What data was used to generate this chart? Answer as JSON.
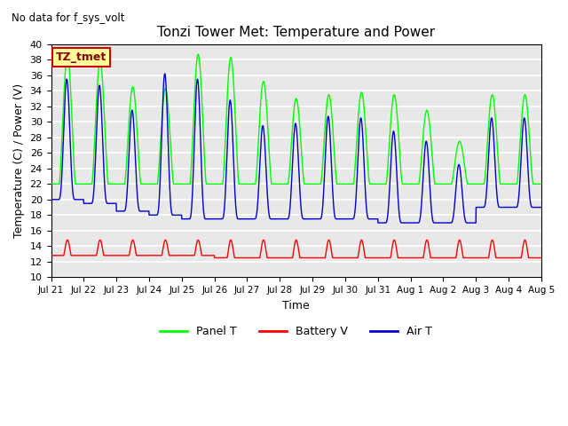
{
  "title": "Tonzi Tower Met: Temperature and Power",
  "top_left_note": "No data for f_sys_volt",
  "ylabel": "Temperature (C) / Power (V)",
  "xlabel": "Time",
  "ylim": [
    10,
    40
  ],
  "yticks": [
    10,
    12,
    14,
    16,
    18,
    20,
    22,
    24,
    26,
    28,
    30,
    32,
    34,
    36,
    38,
    40
  ],
  "xtick_labels": [
    "Jul 21",
    "Jul 22",
    "Jul 23",
    "Jul 24",
    "Jul 25",
    "Jul 26",
    "Jul 27",
    "Jul 28",
    "Jul 29",
    "Jul 30",
    "Jul 31",
    "Aug 1",
    "Aug 2",
    "Aug 3",
    "Aug 4",
    "Aug 5"
  ],
  "legend_box_label": "TZ_tmet",
  "legend_entries": [
    "Panel T",
    "Battery V",
    "Air T"
  ],
  "panel_t_color": "#00FF00",
  "battery_v_color": "#FF0000",
  "air_t_color": "#0000CC",
  "background_color": "#E8E8E8",
  "panel_t_peaks": [
    38.5,
    37.7,
    34.5,
    34.3,
    38.7,
    38.3,
    35.2,
    33.0,
    33.5,
    33.8,
    33.5,
    31.5,
    27.5,
    33.5,
    33.5
  ],
  "panel_t_base": 22.0,
  "air_t_peaks": [
    35.5,
    34.7,
    31.5,
    36.2,
    35.5,
    32.8,
    29.5,
    29.8,
    30.7,
    30.5,
    28.8,
    27.5,
    24.5,
    30.5,
    30.5
  ],
  "air_t_base": [
    20.0,
    19.5,
    18.5,
    18.0,
    17.5,
    17.5,
    17.5,
    17.5,
    17.5,
    17.5,
    17.0,
    17.0,
    17.0,
    19.0,
    19.0
  ],
  "battery_v_base": 12.8,
  "battery_v_peak": 14.8,
  "battery_v_low": 12.5,
  "n_days": 15,
  "figsize": [
    6.4,
    4.8
  ],
  "dpi": 100
}
